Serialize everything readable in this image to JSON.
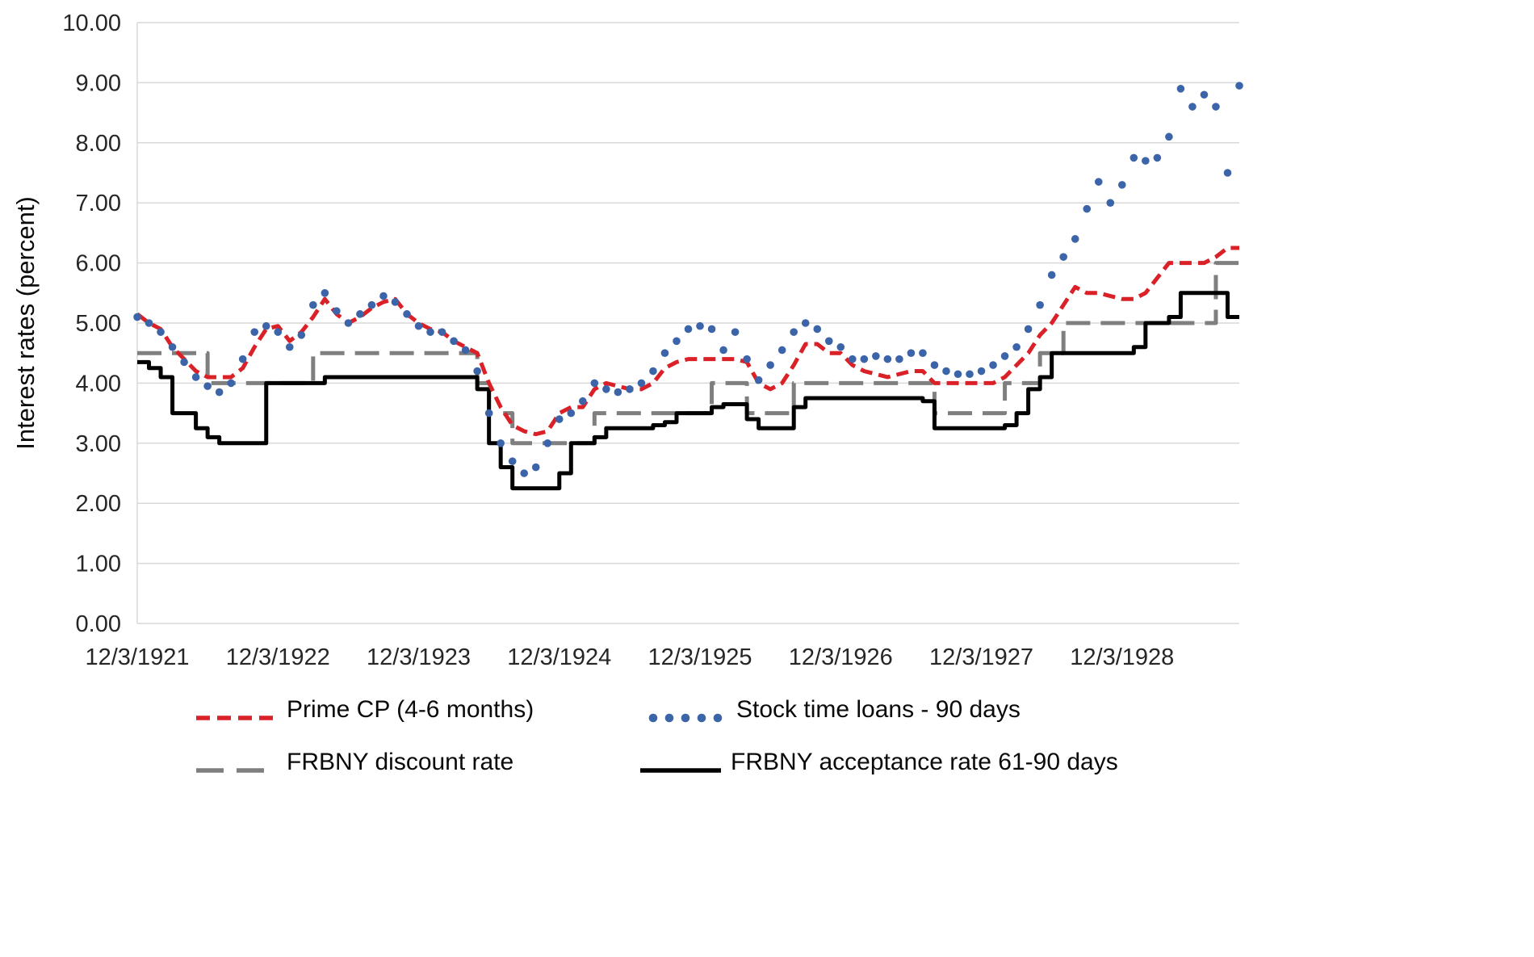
{
  "chart_data": {
    "type": "line",
    "title": "",
    "xlabel": "",
    "ylabel": "Interest rates (percent)",
    "ylim": [
      0,
      10
    ],
    "grid": true,
    "legend_position": "bottom",
    "y_tick_labels": [
      "0.00",
      "1.00",
      "2.00",
      "3.00",
      "4.00",
      "5.00",
      "6.00",
      "7.00",
      "8.00",
      "9.00",
      "10.00"
    ],
    "x_ticks": [
      {
        "label": "12/3/1921",
        "index": 0
      },
      {
        "label": "12/3/1922",
        "index": 12
      },
      {
        "label": "12/3/1923",
        "index": 24
      },
      {
        "label": "12/3/1924",
        "index": 36
      },
      {
        "label": "12/3/1925",
        "index": 48
      },
      {
        "label": "12/3/1926",
        "index": 60
      },
      {
        "label": "12/3/1927",
        "index": 72
      },
      {
        "label": "12/3/1928",
        "index": 84
      }
    ],
    "x_frequency": "monthly",
    "x_range_note": "Dec 1921 through Oct 1929, monthly estimates read from weekly plot",
    "series": [
      {
        "name": "Prime CP (4-6 months)",
        "slug": "prime-cp",
        "color": "#da2128",
        "style": "dashed",
        "step": false,
        "values": [
          5.15,
          5.0,
          4.9,
          4.6,
          4.4,
          4.2,
          4.1,
          4.1,
          4.1,
          4.25,
          4.6,
          4.9,
          4.95,
          4.7,
          4.85,
          5.1,
          5.4,
          5.15,
          5.0,
          5.1,
          5.25,
          5.35,
          5.4,
          5.15,
          5.0,
          4.9,
          4.85,
          4.7,
          4.6,
          4.5,
          4.0,
          3.6,
          3.3,
          3.2,
          3.15,
          3.2,
          3.5,
          3.6,
          3.6,
          3.9,
          4.0,
          3.95,
          3.9,
          3.9,
          4.0,
          4.25,
          4.35,
          4.4,
          4.4,
          4.4,
          4.4,
          4.4,
          4.35,
          4.0,
          3.9,
          4.0,
          4.3,
          4.65,
          4.65,
          4.5,
          4.5,
          4.3,
          4.2,
          4.15,
          4.1,
          4.15,
          4.2,
          4.2,
          4.0,
          4.0,
          4.0,
          4.0,
          4.0,
          4.0,
          4.1,
          4.3,
          4.5,
          4.8,
          5.0,
          5.3,
          5.6,
          5.5,
          5.5,
          5.45,
          5.4,
          5.4,
          5.5,
          5.75,
          6.0,
          6.0,
          6.0,
          6.0,
          6.1,
          6.25,
          6.25
        ]
      },
      {
        "name": "Stock time loans - 90 days",
        "slug": "stock-time-loans",
        "color": "#3c64a8",
        "style": "dots",
        "step": false,
        "values": [
          5.1,
          5.0,
          4.85,
          4.6,
          4.35,
          4.1,
          3.95,
          3.85,
          4.0,
          4.4,
          4.85,
          4.95,
          4.85,
          4.6,
          4.8,
          5.3,
          5.5,
          5.2,
          5.0,
          5.15,
          5.3,
          5.45,
          5.35,
          5.15,
          4.95,
          4.85,
          4.85,
          4.7,
          4.55,
          4.2,
          3.5,
          3.0,
          2.7,
          2.5,
          2.6,
          3.0,
          3.4,
          3.5,
          3.7,
          4.0,
          3.9,
          3.85,
          3.9,
          4.0,
          4.2,
          4.5,
          4.7,
          4.9,
          4.95,
          4.9,
          4.55,
          4.85,
          4.4,
          4.05,
          4.3,
          4.55,
          4.85,
          5.0,
          4.9,
          4.7,
          4.6,
          4.4,
          4.4,
          4.45,
          4.4,
          4.4,
          4.5,
          4.5,
          4.3,
          4.2,
          4.15,
          4.15,
          4.2,
          4.3,
          4.45,
          4.6,
          4.9,
          5.3,
          5.8,
          6.1,
          6.4,
          6.9,
          7.35,
          7.0,
          7.3,
          7.75,
          7.7,
          7.75,
          8.1,
          8.9,
          8.6,
          8.8,
          8.6,
          7.5,
          8.95
        ]
      },
      {
        "name": "FRBNY discount rate",
        "slug": "frbny-discount-rate",
        "color": "#7f7f7f",
        "style": "longdash",
        "step": true,
        "values": [
          4.5,
          4.5,
          4.5,
          4.5,
          4.5,
          4.5,
          4.0,
          4.0,
          4.0,
          4.0,
          4.0,
          4.0,
          4.0,
          4.0,
          4.0,
          4.5,
          4.5,
          4.5,
          4.5,
          4.5,
          4.5,
          4.5,
          4.5,
          4.5,
          4.5,
          4.5,
          4.5,
          4.5,
          4.5,
          4.0,
          3.5,
          3.5,
          3.0,
          3.0,
          3.0,
          3.0,
          3.0,
          3.0,
          3.0,
          3.5,
          3.5,
          3.5,
          3.5,
          3.5,
          3.5,
          3.5,
          3.5,
          3.5,
          3.5,
          4.0,
          4.0,
          4.0,
          3.5,
          3.5,
          3.5,
          3.5,
          4.0,
          4.0,
          4.0,
          4.0,
          4.0,
          4.0,
          4.0,
          4.0,
          4.0,
          4.0,
          4.0,
          4.0,
          3.5,
          3.5,
          3.5,
          3.5,
          3.5,
          3.5,
          4.0,
          4.0,
          4.0,
          4.5,
          4.5,
          5.0,
          5.0,
          5.0,
          5.0,
          5.0,
          5.0,
          5.0,
          5.0,
          5.0,
          5.0,
          5.0,
          5.0,
          5.0,
          6.0,
          6.0,
          6.0
        ]
      },
      {
        "name": "FRBNY acceptance rate 61-90 days",
        "slug": "frbny-acceptance-rate",
        "color": "#000000",
        "style": "solid",
        "step": true,
        "values": [
          4.35,
          4.25,
          4.1,
          3.5,
          3.5,
          3.25,
          3.1,
          3.0,
          3.0,
          3.0,
          3.0,
          4.0,
          4.0,
          4.0,
          4.0,
          4.0,
          4.1,
          4.1,
          4.1,
          4.1,
          4.1,
          4.1,
          4.1,
          4.1,
          4.1,
          4.1,
          4.1,
          4.1,
          4.1,
          3.9,
          3.0,
          2.6,
          2.25,
          2.25,
          2.25,
          2.25,
          2.5,
          3.0,
          3.0,
          3.1,
          3.25,
          3.25,
          3.25,
          3.25,
          3.3,
          3.35,
          3.5,
          3.5,
          3.5,
          3.6,
          3.65,
          3.65,
          3.4,
          3.25,
          3.25,
          3.25,
          3.6,
          3.75,
          3.75,
          3.75,
          3.75,
          3.75,
          3.75,
          3.75,
          3.75,
          3.75,
          3.75,
          3.7,
          3.25,
          3.25,
          3.25,
          3.25,
          3.25,
          3.25,
          3.3,
          3.5,
          3.9,
          4.1,
          4.5,
          4.5,
          4.5,
          4.5,
          4.5,
          4.5,
          4.5,
          4.6,
          5.0,
          5.0,
          5.1,
          5.5,
          5.5,
          5.5,
          5.5,
          5.1,
          5.1
        ]
      }
    ],
    "colors": {
      "grid": "#d9d9d9",
      "axis_text": "#262626",
      "legend_text": "#0a0a0a"
    }
  }
}
